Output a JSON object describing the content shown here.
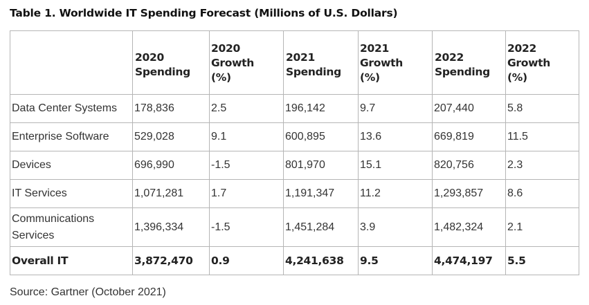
{
  "title": "Table 1. Worldwide IT Spending Forecast (Millions of U.S. Dollars)",
  "headers": [
    {
      "lines": [
        "",
        ""
      ],
      "stack": false
    },
    {
      "lines": [
        "2020",
        "Spending"
      ],
      "stack": false
    },
    {
      "lines": [
        "2020",
        "Growth",
        "(%)"
      ],
      "stack": true
    },
    {
      "lines": [
        "2021",
        "Spending"
      ],
      "stack": false
    },
    {
      "lines": [
        "2021",
        "Growth",
        "(%)"
      ],
      "stack": true
    },
    {
      "lines": [
        "2022",
        "Spending"
      ],
      "stack": false
    },
    {
      "lines": [
        "2022",
        "Growth",
        "(%)"
      ],
      "stack": true
    }
  ],
  "rows": [
    {
      "segment": "Data Center Systems",
      "cells": [
        "178,836",
        "2.5",
        "196,142",
        "9.7",
        "207,440",
        "5.8"
      ]
    },
    {
      "segment": "Enterprise Software",
      "cells": [
        "529,028",
        "9.1",
        "600,895",
        "13.6",
        "669,819",
        "11.5"
      ]
    },
    {
      "segment": "Devices",
      "cells": [
        "696,990",
        "-1.5",
        "801,970",
        "15.1",
        "820,756",
        "2.3"
      ]
    },
    {
      "segment": "IT Services",
      "cells": [
        "1,071,281",
        "1.7",
        "1,191,347",
        "11.2",
        "1,293,857",
        "8.6"
      ]
    },
    {
      "segment": "Communications Services",
      "cells": [
        "1,396,334",
        "-1.5",
        "1,451,284",
        "3.9",
        "1,482,324",
        "2.1"
      ]
    }
  ],
  "total": {
    "segment": "Overall IT",
    "cells": [
      "3,872,470",
      "0.9",
      "4,241,638",
      "9.5",
      "4,474,197",
      "5.5"
    ]
  },
  "source": "Source: Gartner (October 2021)"
}
